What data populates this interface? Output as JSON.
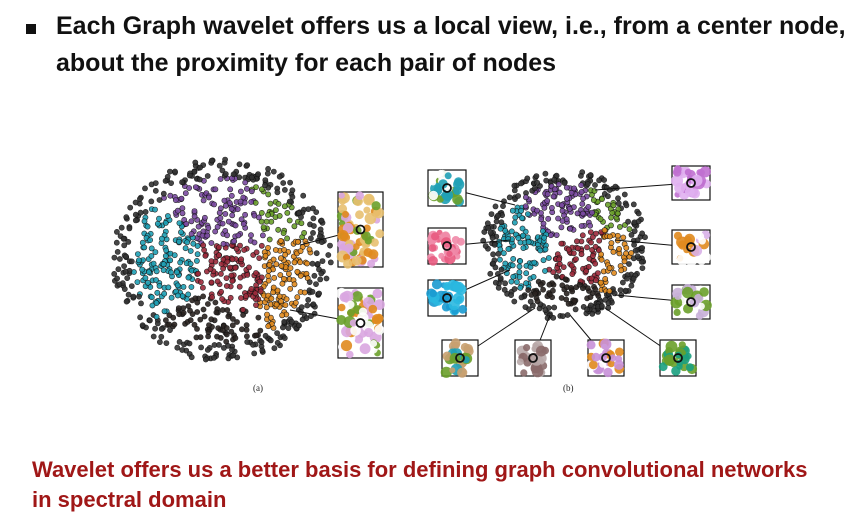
{
  "slide": {
    "bullet_text": "Each Graph wavelet offers us a local view, i.e., from a center node, about the proximity for each pair of nodes",
    "figure_captions": {
      "a": "(a)",
      "b": "(b)"
    },
    "conclusion": "Wavelet offers us a better basis for defining graph convolutional networks in spectral domain"
  },
  "colors": {
    "conclusion": "#a01717",
    "cluster_cyan": "#1fa0b5",
    "cluster_purple": "#7a4aa0",
    "cluster_red": "#9c2a3a",
    "cluster_orange": "#e08a1e",
    "cluster_green": "#6aa02a",
    "cluster_dark": "#2a2320"
  }
}
